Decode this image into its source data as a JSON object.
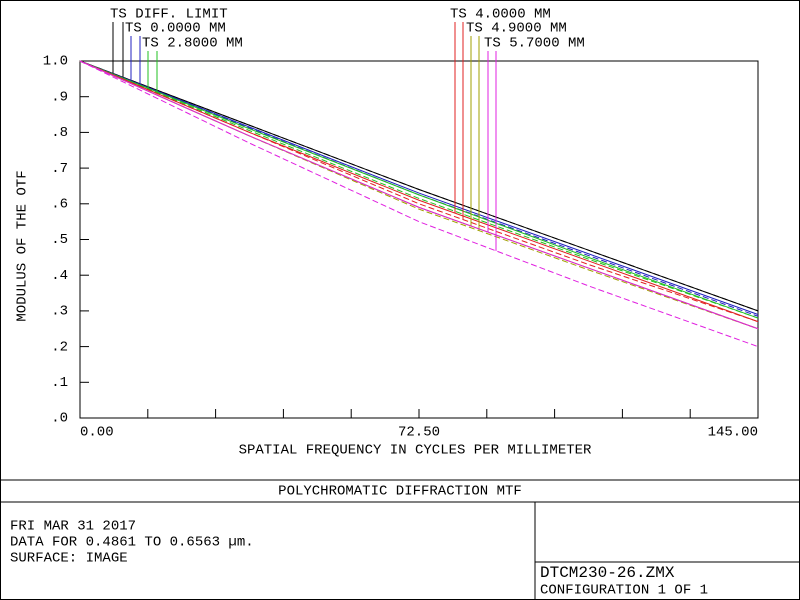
{
  "chart_data": {
    "type": "line",
    "title": "POLYCHROMATIC DIFFRACTION MTF",
    "x_label": "SPATIAL FREQUENCY IN CYCLES PER MILLIMETER",
    "y_label": "MODULUS OF THE OTF",
    "x": [
      0,
      36.25,
      72.5,
      108.75,
      145
    ],
    "xlim": [
      0,
      145
    ],
    "xticks": [
      {
        "value": 0,
        "label": "0.00"
      },
      {
        "value": 72.5,
        "label": "72.50"
      },
      {
        "value": 145,
        "label": "145.00"
      }
    ],
    "x_minor_ticks": [
      14.5,
      29,
      43.5,
      58,
      87,
      101.5,
      116,
      130.5
    ],
    "ylim": [
      0,
      1
    ],
    "yticks": [
      {
        "value": 0,
        "label": ".0"
      },
      {
        "value": 0.1,
        "label": ".1"
      },
      {
        "value": 0.2,
        "label": ".2"
      },
      {
        "value": 0.3,
        "label": ".3"
      },
      {
        "value": 0.4,
        "label": ".4"
      },
      {
        "value": 0.5,
        "label": ".5"
      },
      {
        "value": 0.6,
        "label": ".6"
      },
      {
        "value": 0.7,
        "label": ".7"
      },
      {
        "value": 0.8,
        "label": ".8"
      },
      {
        "value": 0.9,
        "label": ".9"
      },
      {
        "value": 1,
        "label": "1.0"
      }
    ],
    "series": [
      {
        "name": "TS DIFF. LIMIT",
        "color": "#000000",
        "tangential": [
          1,
          0.82,
          0.64,
          0.47,
          0.3
        ],
        "sagittal": [
          1,
          0.82,
          0.64,
          0.47,
          0.3
        ]
      },
      {
        "name": "TS 0.0000 MM",
        "color": "#2020c0",
        "tangential": [
          1,
          0.815,
          0.63,
          0.46,
          0.29
        ],
        "sagittal": [
          1,
          0.812,
          0.625,
          0.455,
          0.285
        ]
      },
      {
        "name": "TS 2.8000 MM",
        "color": "#20c020",
        "tangential": [
          1,
          0.81,
          0.625,
          0.45,
          0.28
        ],
        "sagittal": [
          1,
          0.805,
          0.615,
          0.445,
          0.28
        ]
      },
      {
        "name": "TS 4.0000 MM",
        "color": "#e02020",
        "tangential": [
          1,
          0.8,
          0.61,
          0.44,
          0.27
        ],
        "sagittal": [
          1,
          0.8,
          0.6,
          0.43,
          0.27
        ]
      },
      {
        "name": "TS 4.9000 MM",
        "color": "#a0a000",
        "tangential": [
          1,
          0.79,
          0.59,
          0.42,
          0.25
        ],
        "sagittal": [
          1,
          0.79,
          0.585,
          0.415,
          0.25
        ]
      },
      {
        "name": "TS 5.7000 MM",
        "color": "#e020e0",
        "tangential": [
          1,
          0.79,
          0.59,
          0.42,
          0.25
        ],
        "sagittal": [
          1,
          0.77,
          0.55,
          0.37,
          0.2
        ]
      }
    ],
    "footer": {
      "date": "FRI MAR 31 2017",
      "data_for": "DATA FOR 0.4861 TO 0.6563 µm.",
      "surface": "SURFACE: IMAGE",
      "file": "DTCM230-26.ZMX",
      "configuration": "CONFIGURATION 1 OF 1"
    }
  }
}
